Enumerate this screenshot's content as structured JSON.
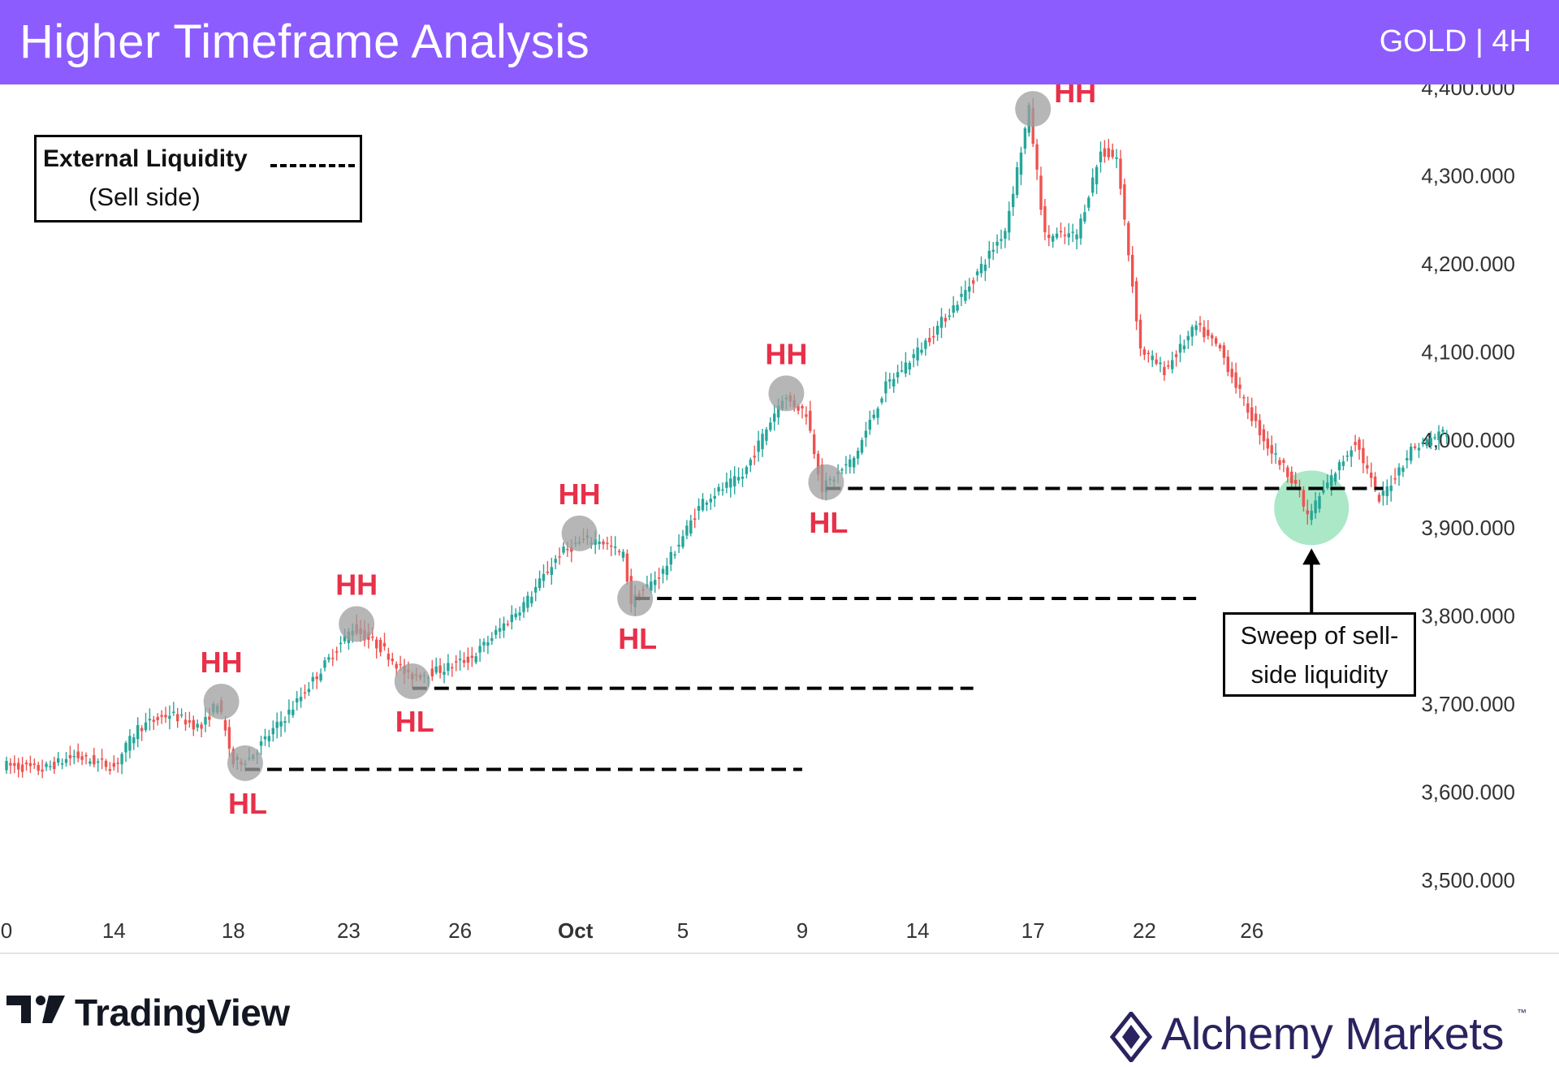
{
  "header": {
    "title": "Higher Timeframe Analysis",
    "subtitle": "GOLD | 4H"
  },
  "legend": {
    "title": "External Liquidity",
    "subtitle": "(Sell side)"
  },
  "annotation": {
    "line1": "Sweep of sell-",
    "line2": "side liquidity"
  },
  "branding": {
    "tradingview": "TradingView",
    "alchemy": "Alchemy Markets",
    "trademark": "™"
  },
  "colors": {
    "up": "#26a69a",
    "down": "#ef5350",
    "label": "#e8304a",
    "header": "#8c5cff",
    "pivot": "#9e9e9e",
    "sweep": "#8ee0b4"
  },
  "chart_data": {
    "type": "candlestick",
    "ylim": [
      3448,
      4414
    ],
    "y_ticks": [
      {
        "value": 4400,
        "label": "4,400.000"
      },
      {
        "value": 4300,
        "label": "4,300.000"
      },
      {
        "value": 4200,
        "label": "4,200.000"
      },
      {
        "value": 4100,
        "label": "4,100.000"
      },
      {
        "value": 4000,
        "label": "4,000.000"
      },
      {
        "value": 3900,
        "label": "3,900.000"
      },
      {
        "value": 3800,
        "label": "3,800.000"
      },
      {
        "value": 3700,
        "label": "3,700.000"
      },
      {
        "value": 3600,
        "label": "3,600.000"
      },
      {
        "value": 3500,
        "label": "3,500.000"
      }
    ],
    "x_ticks": [
      {
        "bar": 0,
        "label": "0"
      },
      {
        "bar": 27,
        "label": "14"
      },
      {
        "bar": 57,
        "label": "18"
      },
      {
        "bar": 86,
        "label": "23"
      },
      {
        "bar": 114,
        "label": "26"
      },
      {
        "bar": 143,
        "label": "Oct",
        "bold": true
      },
      {
        "bar": 170,
        "label": "5"
      },
      {
        "bar": 200,
        "label": "9"
      },
      {
        "bar": 229,
        "label": "14"
      },
      {
        "bar": 258,
        "label": "17"
      },
      {
        "bar": 286,
        "label": "22"
      },
      {
        "bar": 313,
        "label": "26"
      }
    ],
    "anchors": [
      [
        0,
        3630
      ],
      [
        10,
        3625
      ],
      [
        18,
        3640
      ],
      [
        28,
        3628
      ],
      [
        34,
        3672
      ],
      [
        42,
        3688
      ],
      [
        50,
        3672
      ],
      [
        54,
        3702
      ],
      [
        58,
        3632
      ],
      [
        62,
        3638
      ],
      [
        72,
        3690
      ],
      [
        80,
        3738
      ],
      [
        88,
        3786
      ],
      [
        96,
        3760
      ],
      [
        102,
        3730
      ],
      [
        110,
        3738
      ],
      [
        118,
        3752
      ],
      [
        124,
        3780
      ],
      [
        132,
        3818
      ],
      [
        140,
        3870
      ],
      [
        146,
        3885
      ],
      [
        150,
        3886
      ],
      [
        156,
        3868
      ],
      [
        158,
        3815
      ],
      [
        166,
        3850
      ],
      [
        176,
        3930
      ],
      [
        186,
        3958
      ],
      [
        196,
        4048
      ],
      [
        202,
        4030
      ],
      [
        206,
        3944
      ],
      [
        214,
        3978
      ],
      [
        222,
        4060
      ],
      [
        232,
        4110
      ],
      [
        242,
        4168
      ],
      [
        252,
        4238
      ],
      [
        258,
        4374
      ],
      [
        262,
        4230
      ],
      [
        270,
        4232
      ],
      [
        276,
        4326
      ],
      [
        280,
        4320
      ],
      [
        286,
        4102
      ],
      [
        292,
        4078
      ],
      [
        300,
        4128
      ],
      [
        306,
        4102
      ],
      [
        312,
        4042
      ],
      [
        318,
        3992
      ],
      [
        325,
        3950
      ],
      [
        328,
        3912
      ],
      [
        334,
        3956
      ],
      [
        340,
        3998
      ],
      [
        346,
        3930
      ],
      [
        354,
        3988
      ],
      [
        362,
        4008
      ]
    ],
    "levels": [
      {
        "value": 3625,
        "from_bar": 60,
        "to_bar": 200
      },
      {
        "value": 3717,
        "from_bar": 102,
        "to_bar": 243
      },
      {
        "value": 3819,
        "from_bar": 158,
        "to_bar": 299
      },
      {
        "value": 3944,
        "from_bar": 206,
        "to_bar": 346
      }
    ],
    "pivots": [
      {
        "label": "HH",
        "bar": 54,
        "value": 3702,
        "pos": "above"
      },
      {
        "label": "HL",
        "bar": 60,
        "value": 3632,
        "pos": "below"
      },
      {
        "label": "HH",
        "bar": 88,
        "value": 3790,
        "pos": "above"
      },
      {
        "label": "HL",
        "bar": 102,
        "value": 3725,
        "pos": "below"
      },
      {
        "label": "HH",
        "bar": 144,
        "value": 3893,
        "pos": "above"
      },
      {
        "label": "HL",
        "bar": 158,
        "value": 3819,
        "pos": "below"
      },
      {
        "label": "HH",
        "bar": 196,
        "value": 4052,
        "pos": "above"
      },
      {
        "label": "HL",
        "bar": 206,
        "value": 3951,
        "pos": "below"
      },
      {
        "label": "HH",
        "bar": 258,
        "value": 4375,
        "pos": "right"
      }
    ],
    "sweep": {
      "bar": 328,
      "value": 3922
    }
  }
}
